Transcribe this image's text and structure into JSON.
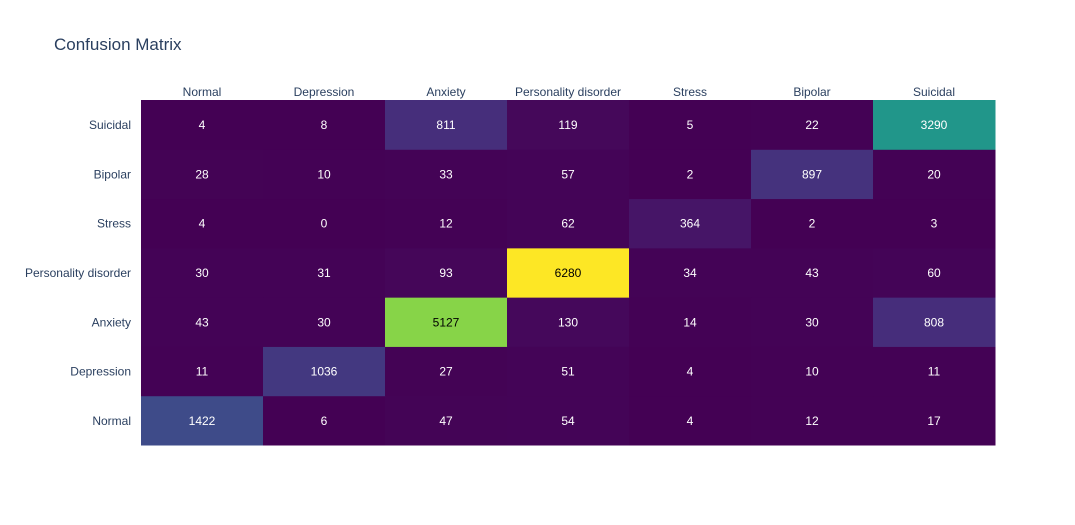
{
  "chart_data": {
    "type": "heatmap",
    "title": "Confusion Matrix",
    "x_categories": [
      "Normal",
      "Depression",
      "Anxiety",
      "Personality disorder",
      "Stress",
      "Bipolar",
      "Suicidal"
    ],
    "y_categories": [
      "Normal",
      "Depression",
      "Anxiety",
      "Personality disorder",
      "Stress",
      "Bipolar",
      "Suicidal"
    ],
    "x_axis_side": "top",
    "colorscale": "Viridis",
    "zmin": 0,
    "zmax": 6280,
    "showscale": false,
    "z": [
      [
        1422,
        6,
        47,
        54,
        4,
        12,
        17
      ],
      [
        11,
        1036,
        27,
        51,
        4,
        10,
        11
      ],
      [
        43,
        30,
        5127,
        130,
        14,
        30,
        808
      ],
      [
        30,
        31,
        93,
        6280,
        34,
        43,
        60
      ],
      [
        4,
        0,
        12,
        62,
        364,
        2,
        3
      ],
      [
        28,
        10,
        33,
        57,
        2,
        897,
        20
      ],
      [
        4,
        8,
        811,
        119,
        5,
        22,
        3290
      ]
    ]
  }
}
